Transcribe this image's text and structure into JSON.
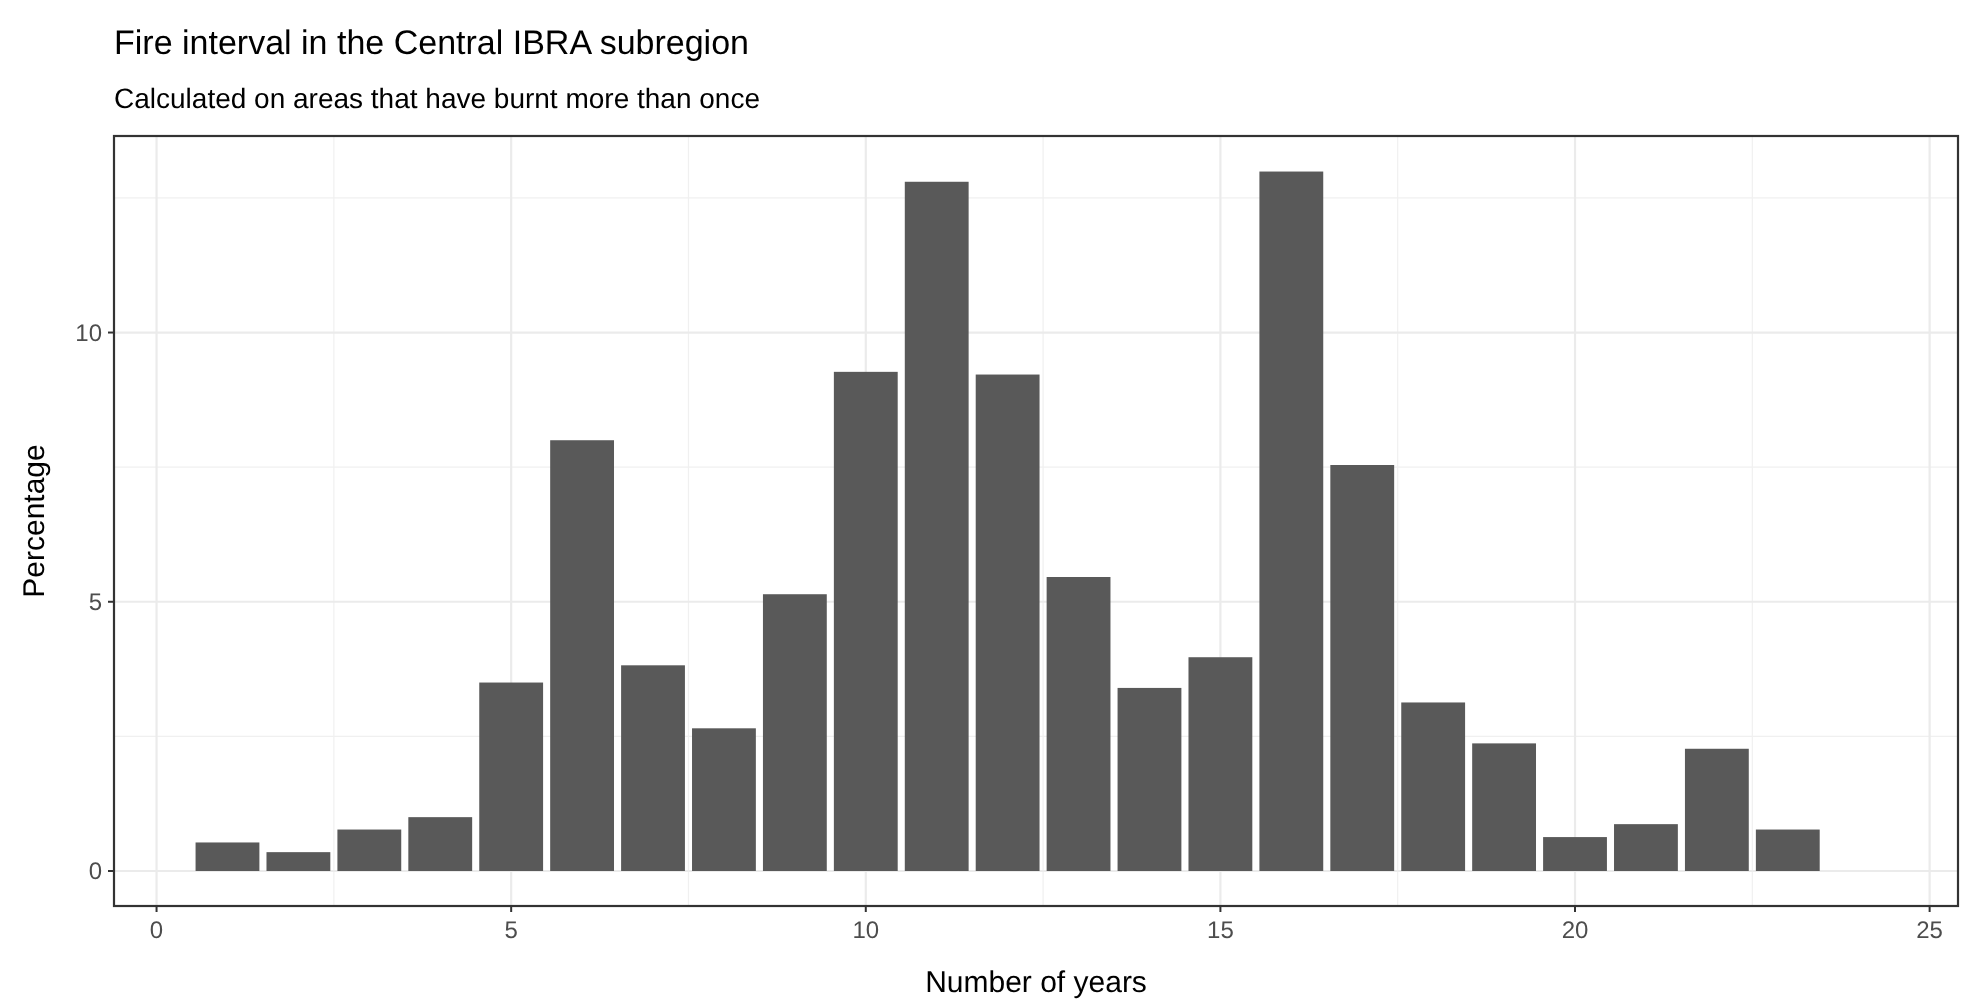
{
  "chart_data": {
    "type": "bar",
    "title": "Fire interval in the Central IBRA subregion",
    "subtitle": "Calculated on areas that have burnt more than once",
    "xlabel": "Number of years",
    "ylabel": "Percentage",
    "x": [
      1,
      2,
      3,
      4,
      5,
      6,
      7,
      8,
      9,
      10,
      11,
      12,
      13,
      14,
      15,
      16,
      17,
      18,
      19,
      20,
      21,
      22,
      23
    ],
    "values": [
      0.53,
      0.35,
      0.77,
      1.0,
      3.5,
      8.0,
      3.82,
      2.65,
      5.14,
      9.27,
      12.8,
      9.22,
      5.46,
      3.4,
      3.97,
      12.99,
      7.54,
      3.13,
      2.37,
      0.63,
      0.87,
      2.27,
      0.77
    ],
    "color": "#595959",
    "xlim": [
      -0.6,
      25.4
    ],
    "xticks": [
      0,
      5,
      10,
      15,
      20,
      25
    ],
    "ylim": [
      -0.65,
      13.65
    ],
    "yticks": [
      0,
      5,
      10
    ],
    "grid": true
  }
}
